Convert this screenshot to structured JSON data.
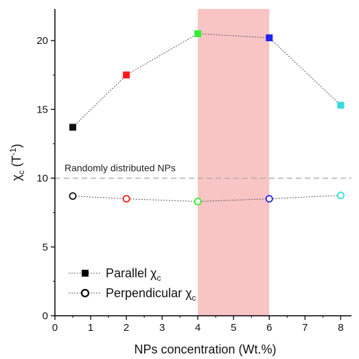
{
  "chart_data": {
    "type": "scatter",
    "x_label": "NPs concentration (Wt.%)",
    "y_label": {
      "symbol": "χ",
      "sub": "c",
      "unit_open": " (T",
      "unit_sup": "-1",
      "unit_close": ")"
    },
    "xlim": [
      0,
      8.3
    ],
    "ylim": [
      0,
      22.3
    ],
    "x_ticks": [
      0,
      1,
      2,
      3,
      4,
      5,
      6,
      7,
      8
    ],
    "y_ticks": [
      0,
      5,
      10,
      15,
      20
    ],
    "shaded_region": {
      "x_start": 4,
      "x_end": 6,
      "color": "#f9c4c4"
    },
    "reference_line": {
      "y": 10,
      "label": "Randomly distributed NPs",
      "color": "#aaaaaa"
    },
    "series": [
      {
        "name": "Parallel χc",
        "legend": {
          "prefix": "Parallel ",
          "symbol": "χ",
          "sub": "c"
        },
        "marker": "filled-square",
        "x": [
          0.5,
          2,
          4,
          6,
          8
        ],
        "y": [
          13.7,
          17.5,
          20.5,
          20.2,
          15.3
        ],
        "point_colors": [
          "#111111",
          "#ff1a1a",
          "#33ee33",
          "#2222ee",
          "#33dddd"
        ]
      },
      {
        "name": "Perpendicular χc",
        "legend": {
          "prefix": "Perpendicular ",
          "symbol": "χ",
          "sub": "c"
        },
        "marker": "open-circle",
        "x": [
          0.5,
          2,
          4,
          6,
          8
        ],
        "y": [
          8.7,
          8.5,
          8.3,
          8.5,
          8.75
        ],
        "point_colors": [
          "#111111",
          "#ff1a1a",
          "#33ee33",
          "#2222ee",
          "#33dddd"
        ]
      }
    ]
  }
}
